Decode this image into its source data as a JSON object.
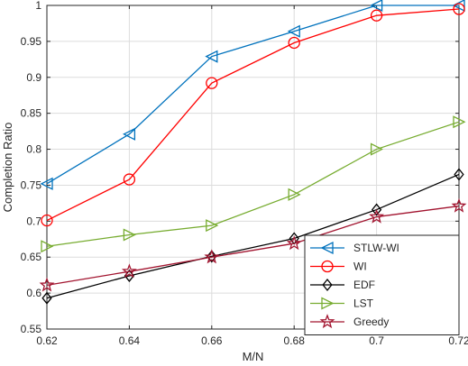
{
  "chart_data": {
    "type": "line",
    "title": "",
    "xlabel": "M/N",
    "ylabel": "Completion Ratio",
    "x": [
      0.62,
      0.64,
      0.66,
      0.68,
      0.7,
      0.72
    ],
    "xlim": [
      0.62,
      0.72
    ],
    "ylim": [
      0.55,
      1.0
    ],
    "xticks": [
      0.62,
      0.64,
      0.66,
      0.68,
      0.7,
      0.72
    ],
    "xtick_labels": [
      "0.62",
      "0.64",
      "0.66",
      "0.68",
      "0.7",
      "0.72"
    ],
    "yticks": [
      0.55,
      0.6,
      0.65,
      0.7,
      0.75,
      0.8,
      0.85,
      0.9,
      0.95,
      1.0
    ],
    "ytick_labels": [
      "0.55",
      "0.6",
      "0.65",
      "0.7",
      "0.75",
      "0.8",
      "0.85",
      "0.9",
      "0.95",
      "1"
    ],
    "grid": true,
    "legend_position": "bottom-right",
    "series": [
      {
        "name": "STLW-WI",
        "color": "#0072BD",
        "marker": "triangle-left",
        "values": [
          0.752,
          0.821,
          0.929,
          0.964,
          1.0,
          1.0
        ]
      },
      {
        "name": "WI",
        "color": "#FF0000",
        "marker": "circle",
        "values": [
          0.701,
          0.758,
          0.892,
          0.948,
          0.986,
          0.995
        ]
      },
      {
        "name": "EDF",
        "color": "#000000",
        "marker": "diamond",
        "values": [
          0.593,
          0.624,
          0.651,
          0.676,
          0.716,
          0.765
        ]
      },
      {
        "name": "LST",
        "color": "#77AC30",
        "marker": "triangle-right",
        "values": [
          0.665,
          0.681,
          0.694,
          0.737,
          0.8,
          0.838
        ]
      },
      {
        "name": "Greedy",
        "color": "#A2142F",
        "marker": "star",
        "values": [
          0.611,
          0.63,
          0.65,
          0.669,
          0.706,
          0.721
        ]
      }
    ]
  }
}
